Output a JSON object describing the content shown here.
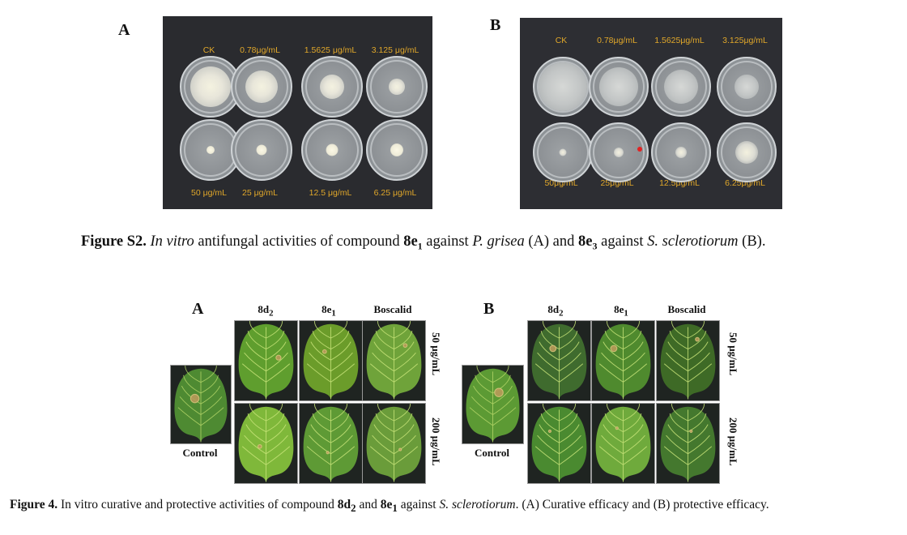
{
  "figure_s2": {
    "panel_a": {
      "label": "A",
      "top_row": [
        "CK",
        "0.78μg/mL",
        "1.5625 μg/mL",
        "3.125 μg/mL"
      ],
      "bottom_row": [
        "50 μg/mL",
        "25 μg/mL",
        "12.5 μg/mL",
        "6.25 μg/mL"
      ]
    },
    "panel_b": {
      "label": "B",
      "top_row": [
        "CK",
        "0.78μg/mL",
        "1.5625μg/mL",
        "3.125μg/mL"
      ],
      "bottom_row": [
        "50μg/mL",
        "25μg/mL",
        "12.5μg/mL",
        "6.25μg/mL"
      ]
    },
    "caption": {
      "prefix": "Figure S2.",
      "t1": " ",
      "italic1": "In vitro",
      "t2": " antifungal activities of compound ",
      "cmp1": "8e",
      "cmp1_sub": "1",
      "t3": " against ",
      "org1": "P. grisea",
      "t4": " (A) and ",
      "cmp2": "8e",
      "cmp2_sub": "3",
      "t5": " against ",
      "org2": "S. sclerotiorum",
      "t6": " (B)."
    }
  },
  "figure_4": {
    "panel_a": {
      "label": "A"
    },
    "panel_b": {
      "label": "B"
    },
    "columns": [
      {
        "name": "8d",
        "sub": "2"
      },
      {
        "name": "8e",
        "sub": "1"
      },
      {
        "name": "Boscalid",
        "sub": ""
      }
    ],
    "rows": [
      "50 μg/mL",
      "200 μg/mL"
    ],
    "control_label": "Control",
    "caption": {
      "prefix": "Figure 4.",
      "t1": " In vitro curative and protective activities of compound ",
      "cmp1": "8d",
      "cmp1_sub": "2",
      "t2": " and ",
      "cmp2": "8e",
      "cmp2_sub": "1",
      "t3": " against ",
      "org": "S. sclerotiorum",
      "t4": ". (A) Curative efficacy and (B) protective efficacy."
    }
  }
}
